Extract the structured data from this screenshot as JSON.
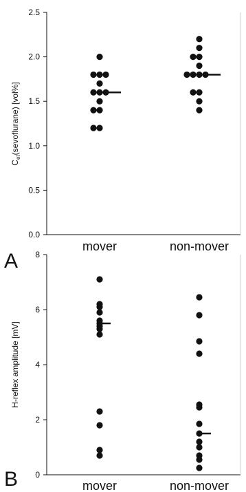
{
  "chart_data": [
    {
      "type": "scatter",
      "panel_label": "A",
      "title": "",
      "xlabel": "",
      "ylabel_main": "C",
      "ylabel_sub": "et",
      "ylabel_rest": "(sevoflurane) [vol%]",
      "categories": [
        "mover",
        "non-mover"
      ],
      "ylim": [
        0,
        2.5
      ],
      "yticks": [
        "0.0",
        "0.5",
        "1.0",
        "1.5",
        "2.0",
        "2.5"
      ],
      "points": [
        [
          2.0,
          1.8,
          1.8,
          1.8,
          1.7,
          1.6,
          1.6,
          1.6,
          1.5,
          1.4,
          1.4,
          1.2,
          1.2
        ],
        [
          2.2,
          2.1,
          2.0,
          2.0,
          1.9,
          1.8,
          1.8,
          1.8,
          1.8,
          1.6,
          1.6,
          1.5,
          1.4
        ]
      ],
      "medians": [
        1.6,
        1.8
      ],
      "grid": false
    },
    {
      "type": "scatter",
      "panel_label": "B",
      "title": "",
      "xlabel": "",
      "ylabel": "H-reflex amplitude [mV]",
      "categories": [
        "mover",
        "non-mover"
      ],
      "ylim": [
        0,
        8
      ],
      "yticks": [
        "0",
        "2",
        "4",
        "6",
        "8"
      ],
      "points": [
        [
          7.1,
          6.2,
          6.1,
          5.9,
          5.6,
          5.5,
          5.4,
          5.3,
          5.1,
          2.3,
          1.8,
          0.9,
          0.7
        ],
        [
          6.45,
          5.8,
          4.85,
          4.4,
          2.55,
          2.45,
          1.85,
          1.5,
          1.2,
          1.0,
          0.7,
          0.55,
          0.25
        ]
      ],
      "medians": [
        5.5,
        1.5
      ],
      "grid": false
    }
  ]
}
